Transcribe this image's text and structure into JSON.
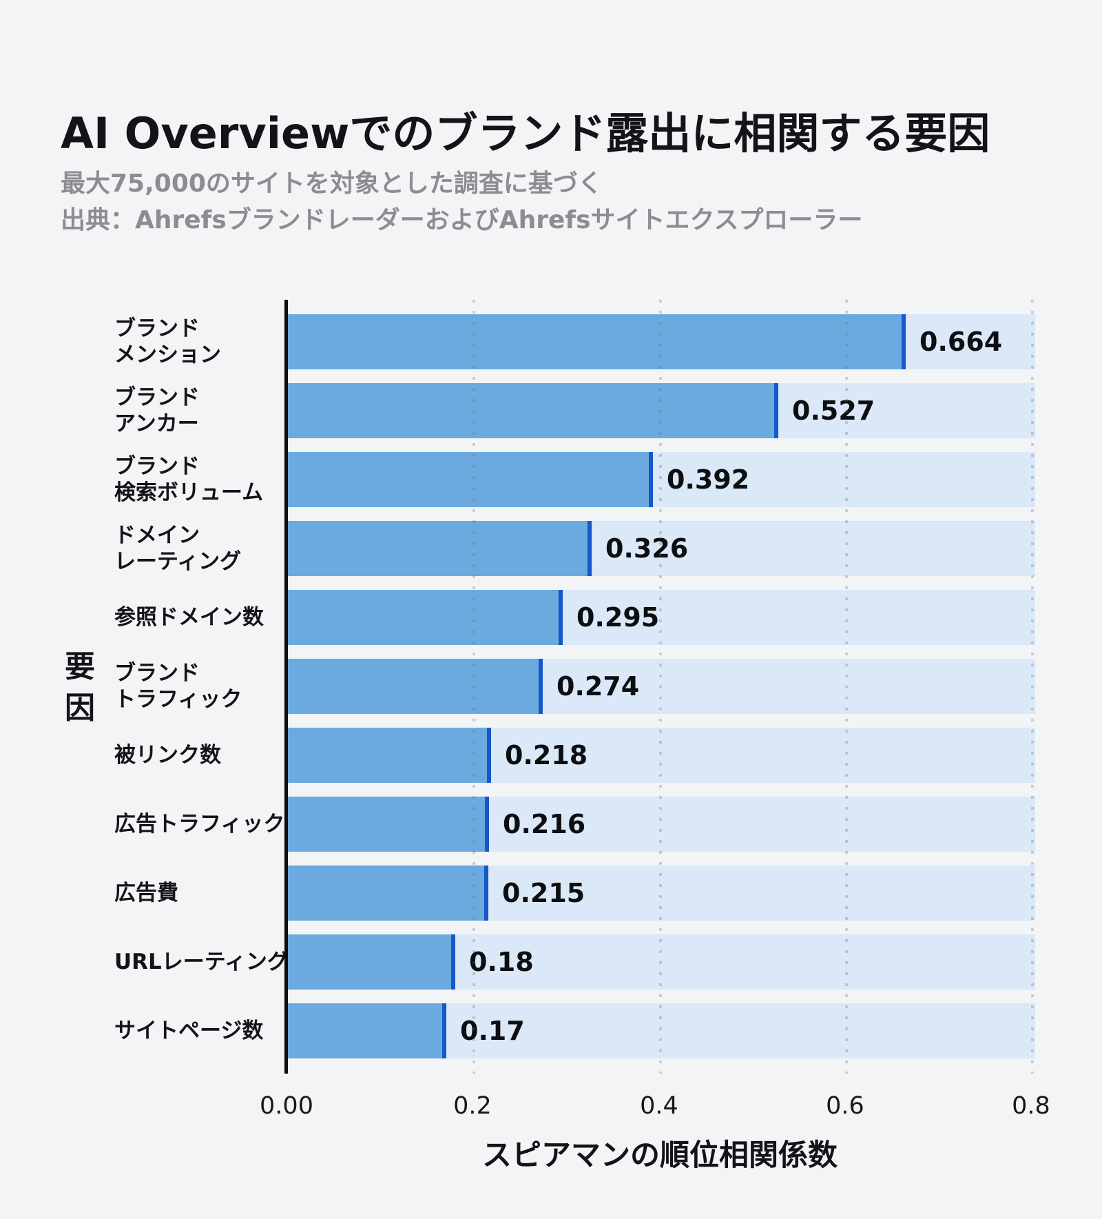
{
  "title": "AI Overviewでのブランド露出に相関する要因",
  "subtitle_line1": "最大75,000のサイトを対象とした調査に基づく",
  "subtitle_line2": "出典：AhrefsブランドレーダーおよびAhrefsサイトエクスプローラー",
  "chart_data": {
    "type": "bar",
    "orientation": "horizontal",
    "title": "AI Overviewでのブランド露出に相関する要因",
    "xlabel": "スピアマンの順位相関係数",
    "ylabel": "要因",
    "xlim": [
      0,
      0.8
    ],
    "grid": "dotted-vertical",
    "legend": "none",
    "categories": [
      [
        "ブランド",
        "メンション"
      ],
      [
        "ブランド",
        "アンカー"
      ],
      [
        "ブランド",
        "検索ボリューム"
      ],
      [
        "ドメイン",
        "レーティング"
      ],
      [
        "参照ドメイン数"
      ],
      [
        "ブランド",
        "トラフィック"
      ],
      [
        "被リンク数"
      ],
      [
        "広告トラフィック"
      ],
      [
        "広告費"
      ],
      [
        "URLレーティング"
      ],
      [
        "サイトページ数"
      ]
    ],
    "values": [
      0.664,
      0.527,
      0.392,
      0.326,
      0.295,
      0.274,
      0.218,
      0.216,
      0.215,
      0.18,
      0.17
    ],
    "value_labels": [
      "0.664",
      "0.527",
      "0.392",
      "0.326",
      "0.295",
      "0.274",
      "0.218",
      "0.216",
      "0.215",
      "0.18",
      "0.17"
    ],
    "x_ticks": [
      {
        "label": "0.00",
        "value": 0
      },
      {
        "label": "0.2",
        "value": 0.2
      },
      {
        "label": "0.4",
        "value": 0.4
      },
      {
        "label": "0.6",
        "value": 0.6
      },
      {
        "label": "0.8",
        "value": 0.8
      }
    ],
    "gridline_values": [
      0.2,
      0.4,
      0.6,
      0.8
    ],
    "colors": {
      "background": "#f2f4f6",
      "bar_fill": "#6aaade",
      "bar_edge": "#1657c9",
      "bar_track": "#dae8f8",
      "axis_line": "#0c0d0f",
      "gridline": "#5a6a80",
      "title_text": "#131417",
      "subtitle_text": "#8b8d91",
      "value_text": "#0d0e10"
    }
  }
}
